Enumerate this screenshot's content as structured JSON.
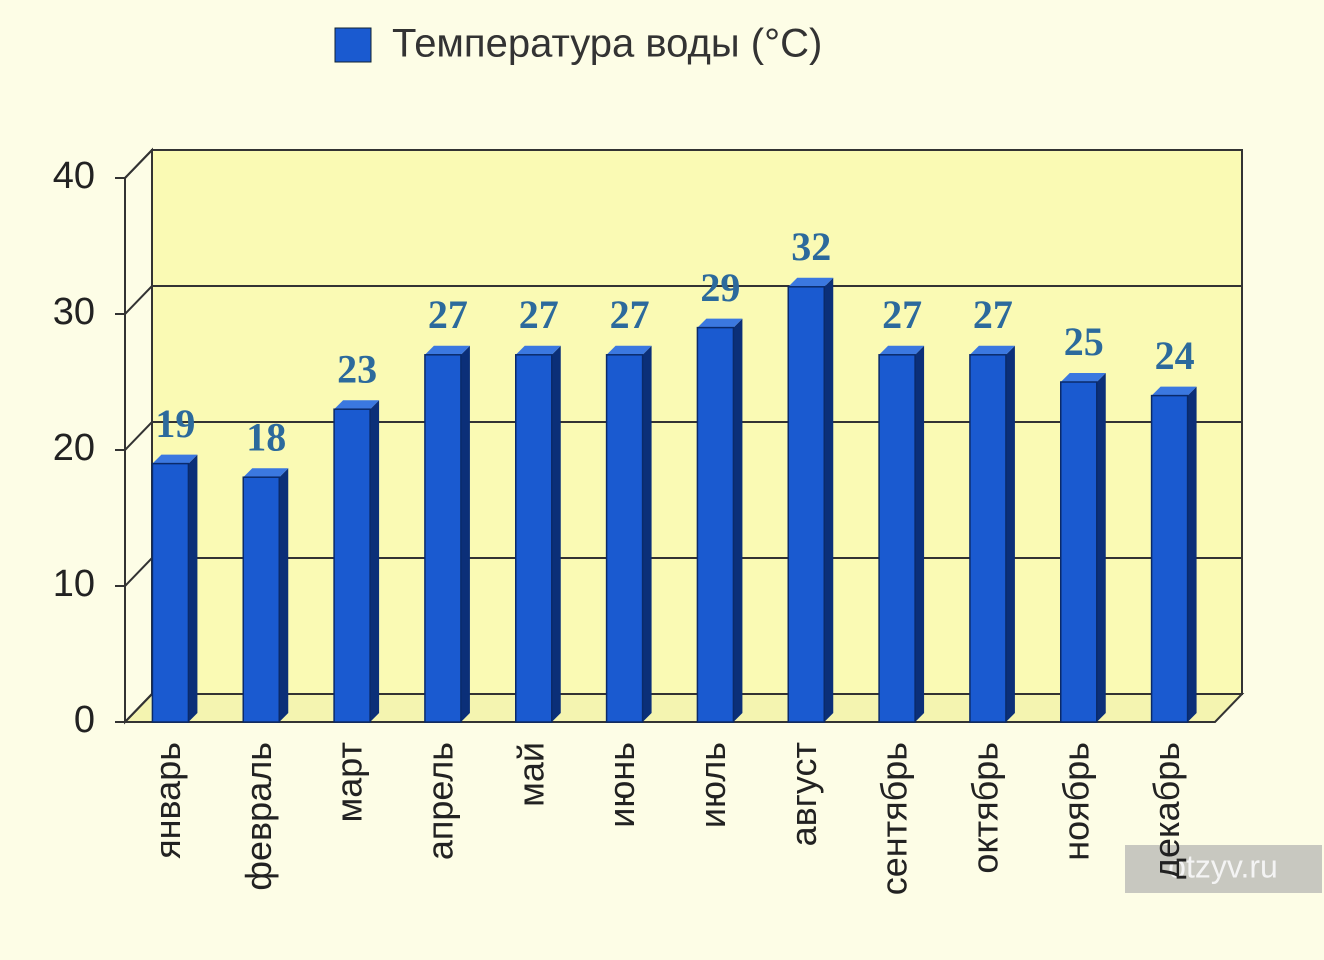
{
  "chart_data": {
    "type": "bar3d",
    "categories": [
      "январь",
      "февраль",
      "март",
      "апрель",
      "май",
      "июнь",
      "июль",
      "август",
      "сентябрь",
      "октябрь",
      "ноябрь",
      "декабрь"
    ],
    "series": [
      {
        "name": "Температура воды (°C)",
        "color": "#1a5ad0",
        "values": [
          19,
          18,
          23,
          27,
          27,
          27,
          29,
          32,
          27,
          27,
          25,
          24
        ]
      }
    ],
    "ylim": [
      0,
      40
    ],
    "yticks": [
      0,
      10,
      20,
      30,
      40
    ],
    "grid": true,
    "legend": "top"
  },
  "watermark": "otzyv.ru"
}
